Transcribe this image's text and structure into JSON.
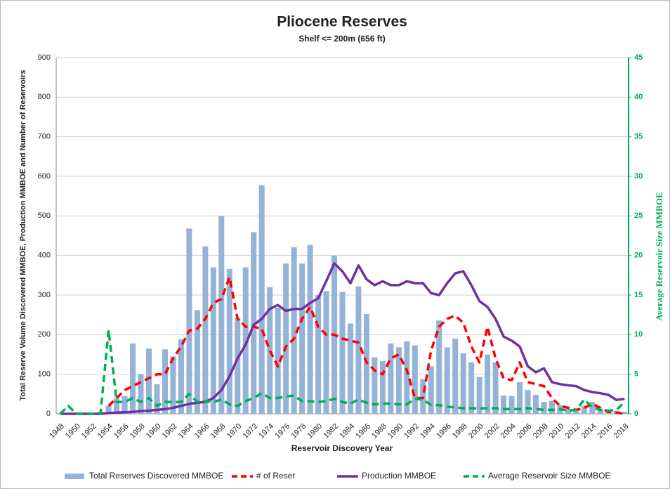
{
  "chart_data": {
    "type": "bar",
    "title": "Pliocene Reserves",
    "subtitle": "Shelf <= 200m (656 ft)",
    "x_label": "Reservoir Discovery Year",
    "y_label": "Total Reserve Volume Discovered MMBOE, Production MMBOE and Number of Reservoirs",
    "y2_label": "Average Reservoir Size MMBOE",
    "categories": [
      "1948",
      null,
      "1950",
      null,
      "1952",
      null,
      "1954",
      null,
      "1956",
      null,
      "1958",
      null,
      "1960",
      null,
      "1962",
      null,
      "1964",
      null,
      "1966",
      null,
      "1968",
      null,
      "1970",
      null,
      "1972",
      null,
      "1974",
      null,
      "1976",
      null,
      "1978",
      null,
      "1980",
      null,
      "1982",
      null,
      "1984",
      null,
      "1986",
      null,
      "1988",
      null,
      "1990",
      null,
      "1992",
      null,
      "1994",
      null,
      "1996",
      null,
      "1998",
      null,
      "2000",
      null,
      "2002",
      null,
      "2004",
      null,
      "2006",
      null,
      "2008",
      null,
      "2010",
      null,
      "2012",
      null,
      "2014",
      null,
      "2016",
      null,
      "2018"
    ],
    "ylim": [
      0,
      900
    ],
    "yticks": [
      0,
      100,
      200,
      300,
      400,
      500,
      600,
      700,
      800,
      900
    ],
    "y2lim": [
      0,
      45
    ],
    "y2ticks": [
      0,
      5,
      10,
      15,
      20,
      25,
      30,
      35,
      40,
      45
    ],
    "grid": true,
    "legend": "bottom",
    "series": [
      {
        "name": "Total Reserves Discovered MMBOE",
        "type": "bar",
        "color": "#95b3d7",
        "values": [
          0,
          0,
          0,
          0,
          0,
          5,
          20,
          40,
          45,
          178,
          100,
          165,
          75,
          163,
          145,
          188,
          468,
          262,
          423,
          370,
          500,
          366,
          243,
          370,
          459,
          578,
          320,
          268,
          380,
          421,
          380,
          427,
          300,
          310,
          400,
          308,
          228,
          322,
          252,
          143,
          133,
          178,
          168,
          183,
          173,
          88,
          120,
          236,
          168,
          190,
          153,
          130,
          93,
          150,
          130,
          46,
          45,
          80,
          60,
          48,
          30,
          33,
          22,
          12,
          10,
          20,
          30,
          12,
          10,
          8,
          5
        ]
      },
      {
        "name": "# of Reser",
        "type": "line",
        "dashed": true,
        "color": "#ff0000",
        "values": [
          null,
          null,
          null,
          null,
          null,
          null,
          20,
          40,
          60,
          70,
          80,
          90,
          100,
          100,
          140,
          170,
          210,
          215,
          240,
          280,
          290,
          345,
          240,
          220,
          220,
          215,
          160,
          120,
          170,
          190,
          240,
          270,
          220,
          200,
          200,
          190,
          185,
          180,
          130,
          110,
          100,
          140,
          150,
          110,
          40,
          40,
          160,
          220,
          240,
          248,
          230,
          170,
          130,
          220,
          140,
          90,
          85,
          130,
          80,
          75,
          70,
          40,
          20,
          15,
          10,
          15,
          25,
          15,
          5,
          3,
          0
        ]
      },
      {
        "name": "Production MMBOE",
        "type": "line",
        "dashed": false,
        "color": "#7030a0",
        "values": [
          0,
          0,
          0,
          0,
          0,
          0,
          2,
          3,
          4,
          5,
          7,
          8,
          10,
          12,
          15,
          20,
          25,
          28,
          30,
          40,
          60,
          95,
          140,
          175,
          225,
          240,
          265,
          275,
          260,
          265,
          265,
          280,
          292,
          335,
          380,
          360,
          330,
          375,
          340,
          325,
          335,
          325,
          325,
          335,
          330,
          330,
          305,
          300,
          330,
          355,
          360,
          325,
          285,
          270,
          240,
          195,
          185,
          170,
          120,
          105,
          115,
          80,
          75,
          72,
          70,
          60,
          55,
          52,
          48,
          35,
          38
        ]
      },
      {
        "name": "Average Reservoir Size MMBOE",
        "type": "line",
        "dashed": true,
        "axis": "y2",
        "color": "#00b050",
        "values": [
          0,
          1,
          0,
          0,
          0,
          0,
          10.6,
          1.5,
          1.5,
          2,
          1.5,
          2,
          1,
          1.5,
          1.5,
          1.5,
          2.5,
          1.5,
          1.6,
          1.5,
          1.8,
          1.2,
          1,
          1.6,
          2,
          2.6,
          2,
          2,
          2.2,
          2.3,
          1.6,
          1.6,
          1.5,
          1.6,
          1.9,
          1.5,
          1.3,
          1.8,
          1.4,
          1.2,
          1.3,
          1.3,
          1.2,
          1.2,
          1.9,
          1.8,
          1.1,
          1.1,
          0.9,
          0.8,
          0.7,
          0.7,
          0.7,
          0.7,
          0.7,
          0.6,
          0.6,
          0.6,
          0.7,
          0.6,
          0.5,
          0.5,
          0.6,
          0.4,
          0.5,
          1.8,
          0.8,
          0.5,
          0.4,
          0.5,
          1.5
        ]
      }
    ]
  }
}
